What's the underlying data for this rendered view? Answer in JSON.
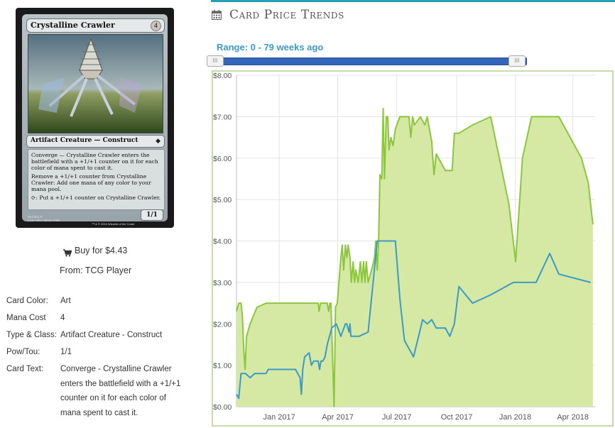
{
  "card": {
    "name": "Crystalline Crawler",
    "mana_symbol": "4",
    "type_line": "Artifact Creature — Construct",
    "rules": [
      "Converge — Crystalline Crawler enters the battlefield with a +1/+1 counter on it for each color of mana spent to cast it.",
      "Remove a +1/+1 counter from Crystalline Crawler: Add one mana of any color to your mana pool.",
      "⟳: Put a +1/+1 counter on Crystalline Crawler."
    ],
    "pt": "1/1",
    "collector": "054/351 R",
    "set_line": "C16 • EN • Jason Felix",
    "copyright": "™ & © 2016 Wizards of the Coast"
  },
  "buy": {
    "label": "Buy for $4.43",
    "from": "From: TCG Player"
  },
  "details": [
    {
      "label": "Card Color:",
      "value": "Art"
    },
    {
      "label": "Mana Cost",
      "value": "4"
    },
    {
      "label": "Type & Class:",
      "value": "Artifact Creature - Construct"
    },
    {
      "label": "Pow/Tou:",
      "value": "1/1"
    },
    {
      "label": "Card Text:",
      "value": "Converge - Crystalline Crawler enters the battlefield with a +1/+1 counter on it for each color of mana spent to cast it."
    }
  ],
  "header": {
    "title": "Card Price Trends",
    "range": "Range: 0 - 79 weeks ago"
  },
  "slider": {
    "min_weeks": 0,
    "max_weeks": 79
  },
  "colors": {
    "accent": "#2a9fbc",
    "green": "#8cc63f",
    "green_fill": "#d5e8a4",
    "blue": "#3b9bc6"
  },
  "chart_data": {
    "type": "area",
    "title": "",
    "xlabel": "",
    "ylabel": "",
    "ylim": [
      0,
      8
    ],
    "y_ticks": [
      "$0.00",
      "$1.00",
      "$2.00",
      "$3.00",
      "$4.00",
      "$5.00",
      "$6.00",
      "$7.00",
      "$8.00"
    ],
    "x_ticks": [
      "Jan 2017",
      "Apr 2017",
      "Jul 2017",
      "Oct 2017",
      "Jan 2018",
      "Apr 2018"
    ],
    "x_tick_week": [
      9.4,
      22.3,
      35.3,
      48.5,
      61.4,
      74.1
    ],
    "xlim": [
      0,
      79
    ],
    "grid": true,
    "series": [
      {
        "x": [
          0,
          0.5,
          1,
          1.3,
          1.6,
          1.9,
          2.2,
          3,
          4.5,
          6.5,
          7.5,
          11,
          13,
          14.5,
          17,
          18,
          18.2,
          18.5,
          20,
          20.3,
          20.6,
          20.8,
          21.5,
          21.8,
          22.2,
          23,
          23.3,
          23.6,
          24,
          24.3,
          24.6,
          25,
          25.3,
          25.7,
          26,
          26.3,
          26.8,
          27.3,
          27.6,
          28,
          28.3,
          28.6,
          29,
          30,
          30.4,
          30.7,
          31,
          31.3,
          31.6,
          32,
          32.3,
          32.6,
          33,
          33.3,
          33.6,
          34,
          34.5,
          35,
          36,
          37,
          38,
          38.4,
          38.8,
          39.2,
          40.5,
          41.5,
          42,
          43,
          43.5,
          44,
          46,
          46.5,
          47.5,
          48,
          49,
          52,
          56,
          60,
          61.5,
          63,
          65,
          69,
          71,
          76,
          77.5,
          78.5
        ],
        "y": [
          2.3,
          2.5,
          2.5,
          2.2,
          1.4,
          0.9,
          1.7,
          2.0,
          2.4,
          2.5,
          2.5,
          2.5,
          2.5,
          2.5,
          2.5,
          2.5,
          2.3,
          2.5,
          2.5,
          2.3,
          2.5,
          2.5,
          0.0,
          2.4,
          2.5,
          3.6,
          3.9,
          3.3,
          3.9,
          3.6,
          3.9,
          3.6,
          3.0,
          3.5,
          3.0,
          3.3,
          3.0,
          3.5,
          3.0,
          3.5,
          3.0,
          3.5,
          3.0,
          3.4,
          3.6,
          4.0,
          3.3,
          4.0,
          5.6,
          5.5,
          7.2,
          5.5,
          7.0,
          7.0,
          6.2,
          6.5,
          6.3,
          6.7,
          7.0,
          7.0,
          7.0,
          6.5,
          7.0,
          6.8,
          7.0,
          6.8,
          7.0,
          6.4,
          5.6,
          6.1,
          5.7,
          5.7,
          5.7,
          6.6,
          6.6,
          6.8,
          7.0,
          4.9,
          3.5,
          6.0,
          7.0,
          7.0,
          7.0,
          6.0,
          5.4,
          4.4
        ],
        "color": "#8cc63f",
        "fill": true
      },
      {
        "x": [
          0,
          0.5,
          1,
          1.5,
          2,
          3,
          4,
          5,
          6,
          6.5,
          7,
          8,
          10,
          13,
          14,
          14.3,
          14.6,
          15,
          16,
          16.5,
          17,
          18,
          18.3,
          18.6,
          19,
          19.5,
          20,
          21,
          22,
          23,
          24,
          24.3,
          24.8,
          25,
          25.2,
          25.5,
          26,
          27,
          29,
          31,
          32,
          33,
          34,
          35,
          36,
          37,
          39,
          41,
          42,
          43,
          44,
          46,
          47,
          48,
          49,
          52,
          56,
          61,
          64,
          66,
          69,
          71,
          78
        ],
        "y": [
          0.3,
          0.2,
          0.8,
          0.8,
          0.8,
          0.7,
          0.8,
          0.8,
          0.8,
          0.8,
          0.9,
          0.9,
          0.9,
          0.9,
          0.7,
          0.3,
          0.9,
          1.2,
          1.3,
          1.0,
          1.1,
          1.1,
          0.9,
          1.1,
          1.1,
          1.2,
          1.5,
          1.9,
          2.0,
          1.7,
          2.0,
          2.0,
          1.8,
          2.0,
          1.7,
          1.7,
          1.7,
          1.7,
          1.8,
          4.0,
          4.0,
          4.0,
          4.0,
          4.0,
          2.6,
          1.6,
          1.2,
          2.1,
          2.0,
          2.1,
          1.9,
          1.9,
          1.7,
          2.0,
          2.9,
          2.5,
          2.7,
          3.0,
          3.0,
          3.0,
          3.7,
          3.2,
          3.0
        ],
        "color": "#3b9bc6",
        "fill": false
      }
    ]
  }
}
